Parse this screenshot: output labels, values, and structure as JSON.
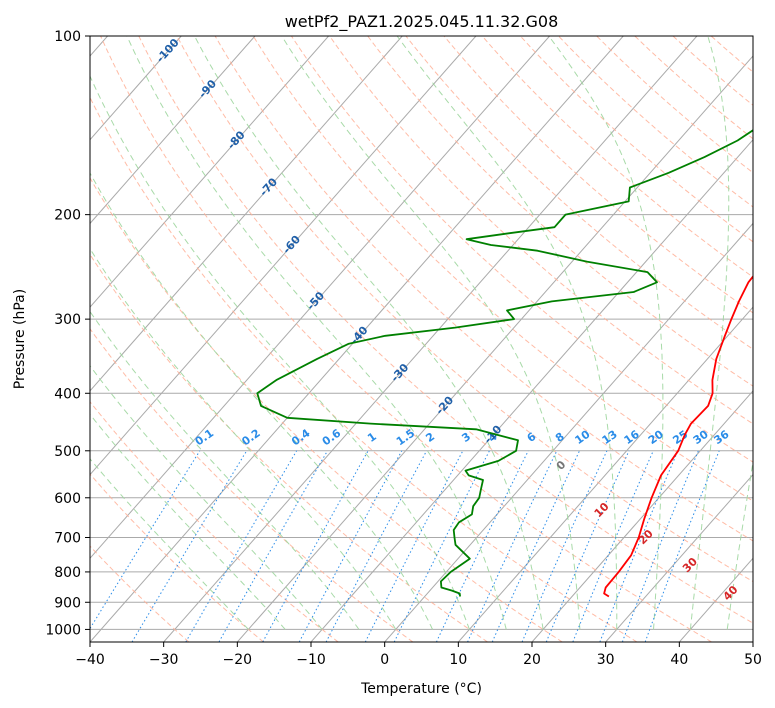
{
  "chart_data": {
    "type": "line",
    "title": "wetPf2_PAZ1.2025.045.11.32.G08",
    "xlabel": "Temperature (°C)",
    "ylabel": "Pressure (hPa)",
    "xlim": [
      -40,
      50
    ],
    "ylim": [
      1050,
      100
    ],
    "y_scale": "log",
    "grid": true,
    "x_ticks": [
      "−40",
      "−30",
      "−20",
      "−10",
      "0",
      "10",
      "20",
      "30",
      "40",
      "50"
    ],
    "x_tick_values": [
      -40,
      -30,
      -20,
      -10,
      0,
      10,
      20,
      30,
      40,
      50
    ],
    "y_ticks": [
      "100",
      "200",
      "300",
      "400",
      "500",
      "600",
      "700",
      "800",
      "900",
      "1000"
    ],
    "y_tick_values": [
      100,
      200,
      300,
      400,
      500,
      600,
      700,
      800,
      900,
      1000
    ],
    "colors": {
      "temperature": "#ff0000",
      "dewpoint": "#008000",
      "isotherm": "#aaaaaa",
      "dry_adiabat": "#ffb097",
      "moist_adiabat": "#9ed69e",
      "mixing_ratio": "#2a8ce8",
      "dry_label": "#1f5fa8",
      "moist_label_warm": "#d62728",
      "moist_label_zero": "#777777"
    },
    "series": [
      {
        "p": [
          880,
          870,
          850,
          800,
          750,
          700,
          650,
          600,
          550,
          500,
          470,
          450,
          420,
          400,
          380,
          350,
          320,
          300,
          280,
          260,
          250,
          240,
          230,
          220,
          210,
          200,
          180,
          160,
          140,
          120,
          110,
          100
        ],
        "values": [
          25.0,
          24.0,
          23.5,
          23.4,
          23.1,
          22.0,
          20.5,
          19.0,
          17.6,
          17.0,
          16.0,
          15.5,
          15.7,
          14.8,
          13.2,
          11.2,
          9.6,
          8.5,
          7.4,
          6.4,
          6.3,
          7.3,
          8.9,
          10.0,
          10.2,
          9.8,
          9.3,
          8.4,
          7.7,
          7.4,
          8.3,
          9.0
        ]
      },
      {
        "p": [
          880,
          870,
          860,
          850,
          830,
          800,
          760,
          720,
          700,
          680,
          660,
          640,
          620,
          600,
          580,
          560,
          550,
          540,
          520,
          500,
          480,
          460,
          450,
          440,
          420,
          400,
          380,
          350,
          330,
          320,
          310,
          300,
          290,
          280,
          270,
          260,
          250,
          240,
          230,
          225,
          220,
          215,
          210,
          200,
          190,
          180,
          170,
          160,
          150,
          140,
          130,
          120,
          110,
          100
        ],
        "values": [
          4.8,
          4.4,
          3.0,
          1.2,
          0.4,
          0.6,
          1.6,
          -2.0,
          -3.0,
          -4.0,
          -4.2,
          -3.4,
          -4.2,
          -4.4,
          -5.2,
          -6.0,
          -8.5,
          -9.5,
          -6.2,
          -5.0,
          -6.0,
          -13.0,
          -28.0,
          -40.0,
          -45.0,
          -47.0,
          -46.0,
          -43.0,
          -40.5,
          -36.5,
          -28.0,
          -21.0,
          -23.0,
          -18.0,
          -8.0,
          -6.0,
          -8.5,
          -18.0,
          -26.0,
          -33.0,
          -37.0,
          -32.0,
          -26.5,
          -26.5,
          -19.5,
          -21.0,
          -17.5,
          -14.5,
          -12.0,
          -10.5,
          -7.0,
          -4.0,
          -2.3,
          -0.6
        ]
      }
    ],
    "mixing_ratio_labels": [
      "0.1",
      "0.2",
      "0.4",
      "0.6",
      "1",
      "1.5",
      "2",
      "3",
      "4",
      "6",
      "8",
      "10",
      "13",
      "16",
      "20",
      "25",
      "30",
      "36"
    ],
    "mixing_ratio_values": [
      0.1,
      0.2,
      0.4,
      0.6,
      1,
      1.5,
      2,
      3,
      4,
      6,
      8,
      10,
      13,
      16,
      20,
      25,
      30,
      36
    ],
    "dry_adiabat_labels": [
      "-100",
      "-90",
      "-80",
      "-70",
      "-60",
      "-50",
      "-40",
      "-30",
      "-20",
      "-10"
    ],
    "dry_adiabat_label_temps": [
      -100,
      -90,
      -80,
      -70,
      -60,
      -50,
      -40,
      -30,
      -20,
      -10
    ],
    "dry_adiabat_label_pressures": [
      106,
      123,
      150,
      180,
      225,
      280,
      320,
      370,
      420,
      470
    ],
    "moist_adiabat_labels": [
      "0",
      "10",
      "20",
      "30",
      "40"
    ],
    "moist_adiabat_label_temps": [
      24,
      29.5,
      35.5,
      41.5,
      47
    ],
    "moist_adiabat_label_pressures": [
      530,
      630,
      700,
      780,
      870
    ]
  }
}
